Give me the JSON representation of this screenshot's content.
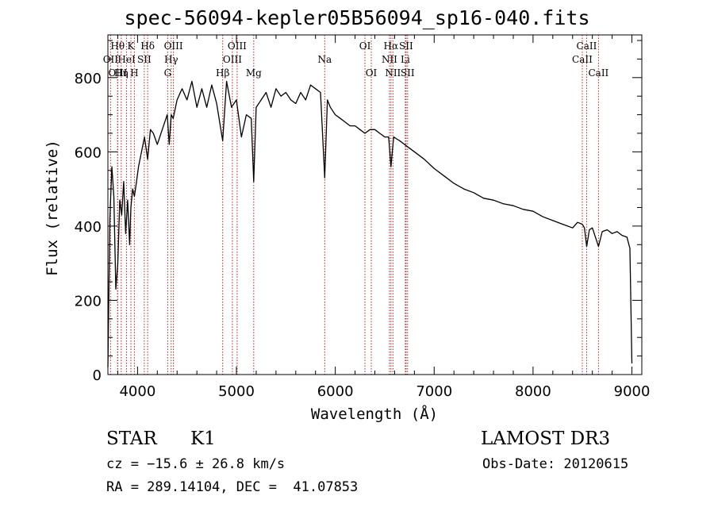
{
  "header": {
    "title": "spec-56094-kepler05B56094_sp16-040.fits"
  },
  "chart_data": {
    "type": "line",
    "title": "spec-56094-kepler05B56094_sp16-040.fits",
    "xlabel": "Wavelength (Å)",
    "ylabel": "Flux (relative)",
    "xlim": [
      3700,
      9100
    ],
    "ylim": [
      0,
      915
    ],
    "x_ticks": [
      4000,
      5000,
      6000,
      7000,
      8000,
      9000
    ],
    "x_tick_labels": [
      "4000",
      "5000",
      "6000",
      "7000",
      "8000",
      "9000"
    ],
    "y_ticks": [
      0,
      200,
      400,
      600,
      800
    ],
    "y_tick_labels": [
      "0",
      "200",
      "400",
      "600",
      "800"
    ],
    "x_minor_step": 200,
    "y_minor_step": 50,
    "grid": false,
    "series": [
      {
        "name": "flux",
        "x": [
          3700,
          3720,
          3740,
          3760,
          3780,
          3800,
          3820,
          3840,
          3860,
          3880,
          3900,
          3920,
          3933,
          3950,
          3968,
          3990,
          4010,
          4040,
          4070,
          4102,
          4130,
          4160,
          4200,
          4250,
          4300,
          4320,
          4340,
          4360,
          4400,
          4450,
          4500,
          4550,
          4600,
          4650,
          4700,
          4750,
          4800,
          4861,
          4900,
          4950,
          5000,
          5050,
          5100,
          5150,
          5175,
          5200,
          5250,
          5300,
          5350,
          5400,
          5450,
          5500,
          5550,
          5600,
          5650,
          5700,
          5750,
          5800,
          5850,
          5893,
          5920,
          5950,
          6000,
          6050,
          6100,
          6150,
          6200,
          6250,
          6300,
          6350,
          6400,
          6450,
          6500,
          6540,
          6563,
          6590,
          6620,
          6650,
          6700,
          6750,
          6800,
          6900,
          7000,
          7100,
          7200,
          7300,
          7400,
          7500,
          7600,
          7700,
          7800,
          7900,
          8000,
          8100,
          8200,
          8300,
          8400,
          8450,
          8498,
          8520,
          8542,
          8570,
          8600,
          8662,
          8700,
          8750,
          8800,
          8850,
          8900,
          8950,
          8980,
          9000
        ],
        "values": [
          20,
          420,
          560,
          480,
          230,
          300,
          470,
          430,
          520,
          380,
          470,
          350,
          450,
          500,
          480,
          520,
          560,
          600,
          640,
          580,
          660,
          650,
          620,
          660,
          700,
          620,
          700,
          690,
          740,
          770,
          740,
          790,
          720,
          770,
          720,
          780,
          730,
          630,
          790,
          720,
          740,
          640,
          700,
          690,
          520,
          720,
          740,
          760,
          720,
          770,
          750,
          760,
          740,
          730,
          760,
          740,
          780,
          770,
          760,
          530,
          740,
          720,
          700,
          690,
          680,
          670,
          670,
          660,
          650,
          660,
          660,
          650,
          640,
          640,
          560,
          640,
          635,
          630,
          620,
          610,
          600,
          580,
          555,
          535,
          515,
          500,
          490,
          475,
          470,
          460,
          455,
          445,
          440,
          425,
          415,
          405,
          395,
          410,
          405,
          395,
          345,
          390,
          395,
          345,
          385,
          390,
          380,
          385,
          375,
          370,
          340,
          30
        ]
      }
    ],
    "annotations": [
      {
        "label": "OII",
        "wavelength": 3727,
        "row": 2
      },
      {
        "label": "Hθ",
        "wavelength": 3798,
        "row": 1
      },
      {
        "label": "OIII",
        "wavelength": 3800,
        "row": 3
      },
      {
        "label": "Hη",
        "wavelength": 3835,
        "row": 3
      },
      {
        "label": "HeI",
        "wavelength": 3889,
        "row": 2
      },
      {
        "label": "K",
        "wavelength": 3933,
        "row": 1
      },
      {
        "label": "H",
        "wavelength": 3968,
        "row": 3
      },
      {
        "label": "SII",
        "wavelength": 4068,
        "row": 2
      },
      {
        "label": "Hδ",
        "wavelength": 4102,
        "row": 1
      },
      {
        "label": "G",
        "wavelength": 4305,
        "row": 3
      },
      {
        "label": "Hγ",
        "wavelength": 4340,
        "row": 2
      },
      {
        "label": "OIII",
        "wavelength": 4363,
        "row": 1
      },
      {
        "label": "Hβ",
        "wavelength": 4861,
        "row": 3
      },
      {
        "label": "OIII",
        "wavelength": 4959,
        "row": 2
      },
      {
        "label": "OIII",
        "wavelength": 5007,
        "row": 1
      },
      {
        "label": "Mg",
        "wavelength": 5175,
        "row": 3
      },
      {
        "label": "Na",
        "wavelength": 5893,
        "row": 2
      },
      {
        "label": "OI",
        "wavelength": 6300,
        "row": 1
      },
      {
        "label": "OI",
        "wavelength": 6364,
        "row": 3
      },
      {
        "label": "NII",
        "wavelength": 6548,
        "row": 2
      },
      {
        "label": "Hα",
        "wavelength": 6563,
        "row": 1
      },
      {
        "label": "NII",
        "wavelength": 6583,
        "row": 3
      },
      {
        "label": "SII",
        "wavelength": 6716,
        "row": 1
      },
      {
        "label": "Li",
        "wavelength": 6708,
        "row": 2
      },
      {
        "label": "SII",
        "wavelength": 6731,
        "row": 3
      },
      {
        "label": "CaII",
        "wavelength": 8498,
        "row": 2
      },
      {
        "label": "CaII",
        "wavelength": 8542,
        "row": 1
      },
      {
        "label": "CaII",
        "wavelength": 8662,
        "row": 3
      }
    ]
  },
  "info": {
    "object_class": "STAR",
    "subclass": "K1",
    "survey": "LAMOST DR3",
    "redshift": "cz = −15.6 ± 26.8 km/s",
    "obs_date": "Obs-Date: 20120615",
    "coords": "RA = 289.14104, DEC =  41.07853"
  }
}
